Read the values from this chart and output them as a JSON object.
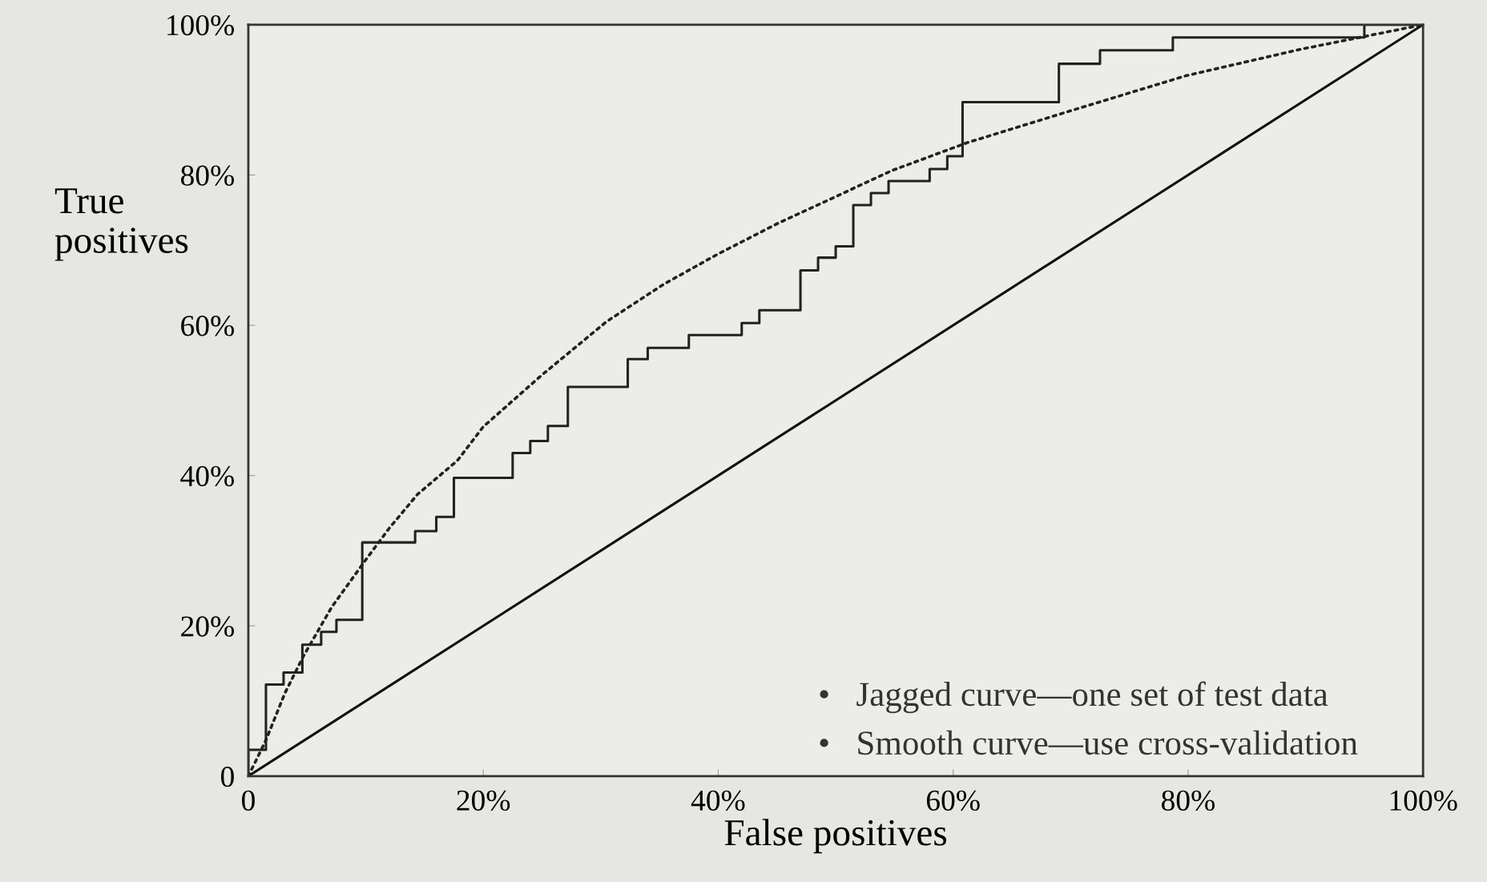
{
  "chart_data": {
    "type": "line",
    "xlabel": "False positives",
    "ylabel": "True\npositives",
    "xlim": [
      0,
      100
    ],
    "ylim": [
      0,
      100
    ],
    "xticks": [
      0,
      {
        "value": 20,
        "label": "20%"
      },
      {
        "value": 40,
        "label": "40%"
      },
      {
        "value": 60,
        "label": "60%"
      },
      {
        "value": 80,
        "label": "80%"
      },
      {
        "value": 100,
        "label": "100%"
      }
    ],
    "yticks": [
      0,
      {
        "value": 20,
        "label": "20%"
      },
      {
        "value": 40,
        "label": "40%"
      },
      {
        "value": 60,
        "label": "60%"
      },
      {
        "value": 80,
        "label": "80%"
      },
      {
        "value": 100,
        "label": "100%"
      }
    ],
    "grid": false,
    "legend": false,
    "marker": "none",
    "series": [
      {
        "type": "step",
        "color": "#222222",
        "line_style": "solid",
        "x": [
          0,
          0,
          1.5,
          3,
          4.6,
          6.2,
          7.5,
          9.7,
          14.2,
          16,
          17.5,
          22.5,
          24,
          25.5,
          27.2,
          32.3,
          34,
          37.5,
          42,
          43.5,
          47,
          48.5,
          50,
          51.5,
          53,
          54.5,
          58,
          59.5,
          60.8,
          69,
          72.5,
          78.7,
          95,
          100
        ],
        "values": [
          0,
          3.5,
          12.2,
          13.8,
          17.5,
          19.2,
          20.8,
          31.1,
          32.6,
          34.5,
          39.7,
          43,
          44.6,
          46.6,
          51.8,
          55.5,
          57,
          58.7,
          60.3,
          62,
          67.3,
          69,
          70.5,
          76,
          77.6,
          79.2,
          80.8,
          82.5,
          89.7,
          94.8,
          96.6,
          98.3,
          100,
          100
        ]
      },
      {
        "color": "#222222",
        "line_style": "dotted",
        "x": [
          0,
          1.5,
          3.1,
          4.7,
          7.1,
          10,
          12,
          14.4,
          17.8,
          20,
          25,
          30.5,
          35.4,
          40,
          45,
          54.8,
          61.2,
          69.7,
          79.8,
          89.5,
          100
        ],
        "values": [
          0,
          4.8,
          11,
          16,
          22.5,
          28.8,
          33,
          37.5,
          42,
          46.5,
          53.4,
          60.5,
          65.5,
          69.5,
          73.5,
          80.6,
          84.3,
          88.4,
          93.2,
          96.7,
          100
        ]
      },
      {
        "color": "#111111",
        "line_style": "solid",
        "x": [
          0,
          100
        ],
        "values": [
          0,
          100
        ]
      }
    ],
    "annotations": [
      "•   Jagged curve—one set of test data",
      "•   Smooth curve—use cross-validation"
    ]
  }
}
